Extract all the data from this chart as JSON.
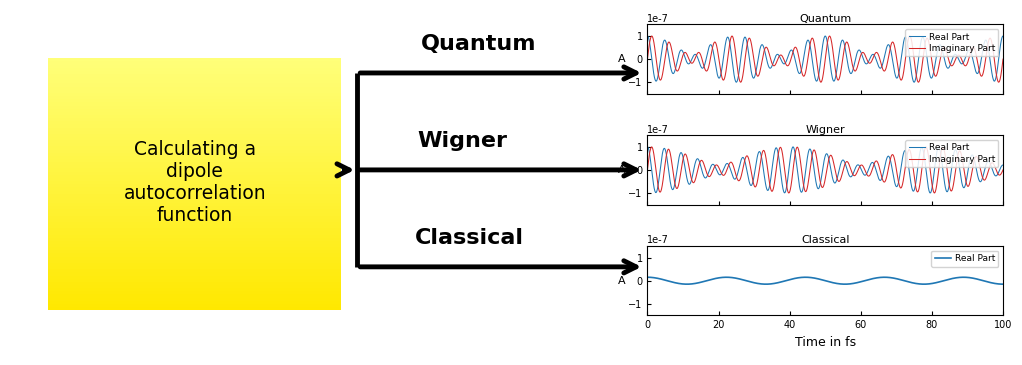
{
  "box_text": "Calculating a\ndipole\nautocorrelation\nfunction",
  "box_color_top": "#FFFFF0",
  "box_color_bottom": "#FFE87C",
  "labels": [
    "Quantum",
    "Wigner",
    "Classical"
  ],
  "plot_titles": [
    "Quantum",
    "Wigner",
    "Classical"
  ],
  "xlabel": "Time in fs",
  "ylabel": "A",
  "ylim": [
    -1.5,
    1.5
  ],
  "xlim": [
    0,
    100
  ],
  "yticks": [
    -1,
    0,
    1
  ],
  "xticks": [
    0,
    20,
    40,
    60,
    80,
    100
  ],
  "scale_label": "1e-7",
  "real_color": "#1f77b4",
  "imag_color": "#d62728",
  "classical_color": "#1f77b4",
  "real_label": "Real Part",
  "imag_label": "Imaginary Part",
  "classical_label": "Real Part",
  "t_max": 100,
  "n_points": 2000,
  "arrow_lw": 3.5,
  "stem_lw": 3.5
}
